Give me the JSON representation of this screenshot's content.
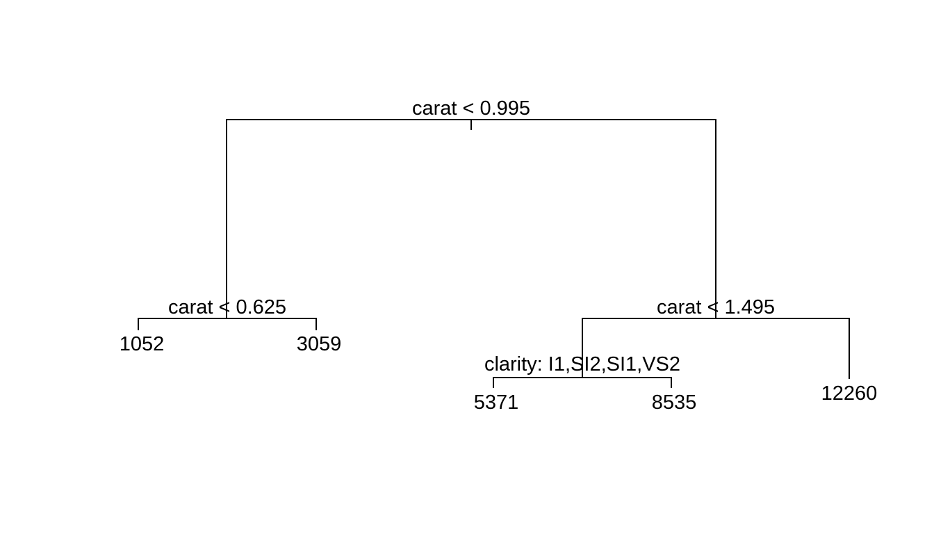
{
  "tree": {
    "root": {
      "split": "carat < 0.995",
      "left": {
        "split": "carat < 0.625",
        "left": {
          "leaf": "1052"
        },
        "right": {
          "leaf": "3059"
        }
      },
      "right": {
        "split": "carat < 1.495",
        "left": {
          "split": "clarity: I1,SI2,SI1,VS2",
          "left": {
            "leaf": "5371"
          },
          "right": {
            "leaf": "8535"
          }
        },
        "right": {
          "leaf": "12260"
        }
      }
    }
  }
}
